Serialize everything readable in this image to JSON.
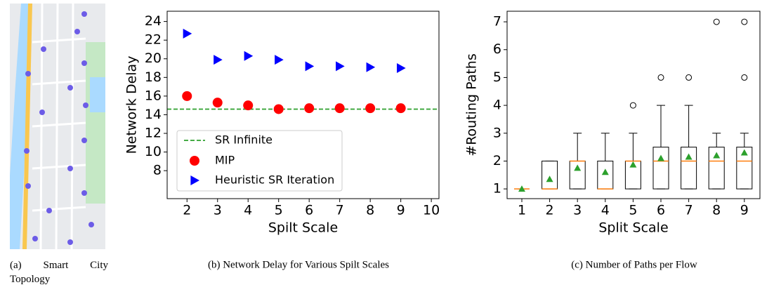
{
  "chart_data": [
    {
      "type": "image",
      "caption": "(a) Smart City Topology"
    },
    {
      "type": "scatter",
      "caption": "(b) Network Delay for Various Spilt Scales",
      "xlabel": "Spilt Scale",
      "ylabel": "Network Delay",
      "xlim": [
        1.35,
        10.25
      ],
      "ylim": [
        5,
        25.1
      ],
      "xticks": [
        2,
        3,
        4,
        5,
        6,
        7,
        8,
        9,
        10
      ],
      "yticks": [
        8,
        10,
        12,
        14,
        16,
        18,
        20,
        22,
        24
      ],
      "legend": "lower left",
      "hline": {
        "name": "SR Infinite",
        "value": 14.6,
        "color": "#2ca02c"
      },
      "x": [
        2,
        3,
        4,
        5,
        6,
        7,
        8,
        9
      ],
      "series": [
        {
          "name": "MIP",
          "marker": "circle",
          "color": "#ff0000",
          "values": [
            16.0,
            15.3,
            15.0,
            14.6,
            14.7,
            14.7,
            14.7,
            14.7
          ]
        },
        {
          "name": "Heuristic SR Iteration",
          "marker": "triangle-right",
          "color": "#0000ff",
          "values": [
            22.7,
            19.9,
            20.3,
            19.9,
            19.2,
            19.2,
            19.1,
            19.0
          ]
        }
      ]
    },
    {
      "type": "box",
      "caption": "(c) Number of Paths per Flow",
      "xlabel": "Split Scale",
      "ylabel": "#Routing Paths",
      "xlim": [
        0.47,
        9.56
      ],
      "ylim": [
        0.65,
        7.38
      ],
      "xticks": [
        1,
        2,
        3,
        4,
        5,
        6,
        7,
        8,
        9
      ],
      "yticks": [
        1,
        2,
        3,
        4,
        5,
        6,
        7
      ],
      "median_color": "#ff7f0e",
      "mean_color": "#2ca02c",
      "x": [
        1,
        2,
        3,
        4,
        5,
        6,
        7,
        8,
        9
      ],
      "boxes": [
        {
          "whislo": 1,
          "q1": 1,
          "median": 1,
          "q3": 1,
          "whishi": 1,
          "mean": 1.0,
          "fliers": []
        },
        {
          "whislo": 1,
          "q1": 1,
          "median": 1,
          "q3": 2,
          "whishi": 2,
          "mean": 1.35,
          "fliers": []
        },
        {
          "whislo": 1,
          "q1": 1,
          "median": 2,
          "q3": 2,
          "whishi": 3,
          "mean": 1.75,
          "fliers": []
        },
        {
          "whislo": 1,
          "q1": 1,
          "median": 1,
          "q3": 2,
          "whishi": 3,
          "mean": 1.6,
          "fliers": []
        },
        {
          "whislo": 1,
          "q1": 1,
          "median": 2,
          "q3": 2,
          "whishi": 3,
          "mean": 1.87,
          "fliers": [
            4
          ]
        },
        {
          "whislo": 1,
          "q1": 1,
          "median": 2,
          "q3": 2.5,
          "whishi": 4,
          "mean": 2.1,
          "fliers": [
            5
          ]
        },
        {
          "whislo": 1,
          "q1": 1,
          "median": 2,
          "q3": 2.5,
          "whishi": 4,
          "mean": 2.15,
          "fliers": [
            5
          ]
        },
        {
          "whislo": 1,
          "q1": 1,
          "median": 2,
          "q3": 2.5,
          "whishi": 3,
          "mean": 2.2,
          "fliers": [
            7
          ]
        },
        {
          "whislo": 1,
          "q1": 1,
          "median": 2,
          "q3": 2.5,
          "whishi": 3,
          "mean": 2.3,
          "fliers": [
            5,
            7
          ]
        }
      ]
    }
  ]
}
